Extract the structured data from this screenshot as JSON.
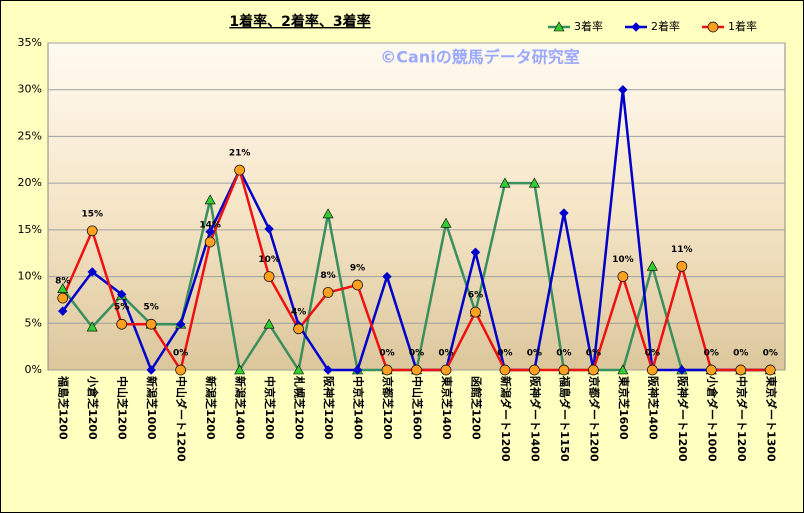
{
  "chart_data": {
    "type": "line",
    "title": "1着率、2着率、3着率",
    "annotation": "©Caniの競馬データ研究室",
    "categories": [
      "福島芝1200",
      "小倉芝1200",
      "中山芝1200",
      "新潟芝1000",
      "中山ダート1200",
      "新潟芝1200",
      "新潟芝1400",
      "中京芝1200",
      "札幌芝1200",
      "阪神芝1200",
      "中京芝1400",
      "京都芝1200",
      "中山芝1600",
      "東京芝1400",
      "函館芝1200",
      "新潟ダート1200",
      "阪神ダート1400",
      "福島ダート1150",
      "京都ダート1200",
      "東京芝1600",
      "阪神芝1400",
      "阪神ダート1200",
      "小倉ダート1000",
      "中京ダート1200",
      "東京ダート1300"
    ],
    "series": [
      {
        "name": "3着率",
        "color": "#3a8f5e",
        "marker": "triangle",
        "values": [
          8.7,
          4.6,
          8.0,
          4.9,
          4.9,
          18.2,
          0,
          4.9,
          0,
          16.7,
          0,
          0,
          0,
          15.7,
          6.2,
          20.0,
          20.0,
          0,
          0,
          0,
          11.1,
          0,
          0,
          0,
          0
        ]
      },
      {
        "name": "2着率",
        "color": "#0000cc",
        "marker": "diamond",
        "values": [
          6.3,
          10.5,
          8.1,
          0,
          4.9,
          14.8,
          21.4,
          15.1,
          4.8,
          0,
          0,
          10.0,
          0,
          0,
          12.6,
          0,
          0,
          16.8,
          0,
          30.0,
          0,
          0,
          0,
          0,
          0
        ]
      },
      {
        "name": "1着率",
        "color": "#ee1111",
        "marker": "circle",
        "values": [
          7.7,
          14.9,
          4.9,
          4.9,
          0,
          13.7,
          21.4,
          10.0,
          4.4,
          8.3,
          9.1,
          0,
          0,
          0,
          6.2,
          0,
          0,
          0,
          0,
          10.0,
          0,
          11.1,
          0,
          0,
          0
        ],
        "value_labels": [
          "8%",
          "15%",
          "5%",
          "5%",
          "0%",
          "14%",
          "21%",
          "10%",
          "4%",
          "8%",
          "9%",
          "0%",
          "0%",
          "0%",
          "6%",
          "0%",
          "0%",
          "0%",
          "0%",
          "10%",
          "0%",
          "11%",
          "0%",
          "0%",
          "0%"
        ]
      }
    ],
    "ylim": [
      0,
      35
    ],
    "yticks": [
      {
        "value": 0,
        "label": "0%"
      },
      {
        "value": 5,
        "label": "5%"
      },
      {
        "value": 10,
        "label": "10%"
      },
      {
        "value": 15,
        "label": "15%"
      },
      {
        "value": 20,
        "label": "20%"
      },
      {
        "value": 25,
        "label": "25%"
      },
      {
        "value": 30,
        "label": "30%"
      },
      {
        "value": 35,
        "label": "35%"
      }
    ],
    "grid": true
  }
}
